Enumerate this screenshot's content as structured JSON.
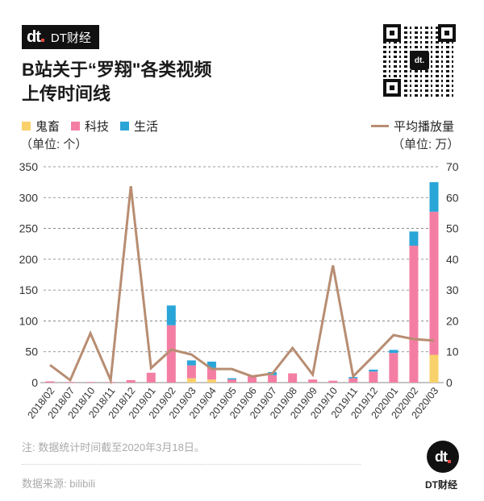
{
  "brand": {
    "logo_text": "dt",
    "name": "DT财经"
  },
  "title": {
    "line1": "B站关于“罗翔\"各类视频",
    "line2": "上传时间线"
  },
  "legend": {
    "items": [
      {
        "label": "鬼畜",
        "color": "#f9d16b"
      },
      {
        "label": "科技",
        "color": "#f47ea3"
      },
      {
        "label": "生活",
        "color": "#2aa5d8"
      }
    ],
    "unit_left": "（单位: 个）",
    "line_label": "平均播放量",
    "line_color": "#b88d72",
    "unit_right": "（单位: 万）"
  },
  "chart_data": {
    "type": "bar",
    "subtype": "stacked bar + line (dual axis)",
    "title": "B站关于“罗翔\"各类视频上传时间线",
    "categories": [
      "2018/02",
      "2018/07",
      "2018/10",
      "2018/11",
      "2018/12",
      "2019/01",
      "2019/02",
      "2019/03",
      "2019/04",
      "2019/05",
      "2019/06",
      "2019/07",
      "2019/08",
      "2019/09",
      "2019/10",
      "2019/11",
      "2019/12",
      "2020/01",
      "2020/02",
      "2020/03"
    ],
    "series": [
      {
        "name": "鬼畜",
        "axis": "left",
        "type": "bar",
        "values": [
          0,
          0,
          0,
          0,
          0,
          0,
          0,
          7,
          5,
          0,
          0,
          0,
          0,
          0,
          0,
          0,
          0,
          0,
          0,
          45
        ]
      },
      {
        "name": "科技",
        "axis": "left",
        "type": "bar",
        "values": [
          2,
          1,
          1,
          1,
          4,
          16,
          93,
          21,
          19,
          5,
          10,
          12,
          15,
          5,
          3,
          7,
          18,
          48,
          222,
          232
        ]
      },
      {
        "name": "生活",
        "axis": "left",
        "type": "bar",
        "values": [
          0,
          0,
          0,
          0,
          0,
          0,
          32,
          8,
          10,
          2,
          0,
          5,
          0,
          0,
          0,
          2,
          3,
          5,
          23,
          48
        ]
      },
      {
        "name": "平均播放量",
        "axis": "right",
        "type": "line",
        "values": [
          5.7,
          0.8,
          16,
          0.8,
          63.7,
          4.7,
          10.7,
          9.1,
          4.4,
          4.4,
          2,
          2.9,
          11.2,
          2.6,
          38,
          2,
          8.6,
          15.4,
          14.1,
          13.6
        ]
      }
    ],
    "ylabel_left": "（单位: 个）",
    "ylabel_right": "（单位: 万）",
    "ylim_left": [
      0,
      350
    ],
    "ylim_right": [
      0,
      70
    ],
    "yticks_left": [
      0,
      50,
      100,
      150,
      200,
      250,
      300,
      350
    ],
    "yticks_right": [
      0,
      10,
      20,
      30,
      40,
      50,
      60,
      70
    ],
    "grid": true,
    "legend_position": "top"
  },
  "footer": {
    "note": "注: 数据统计时间截至2020年3月18日。",
    "source": "数据来源: bilibili",
    "corner_brand": "DT财经"
  }
}
